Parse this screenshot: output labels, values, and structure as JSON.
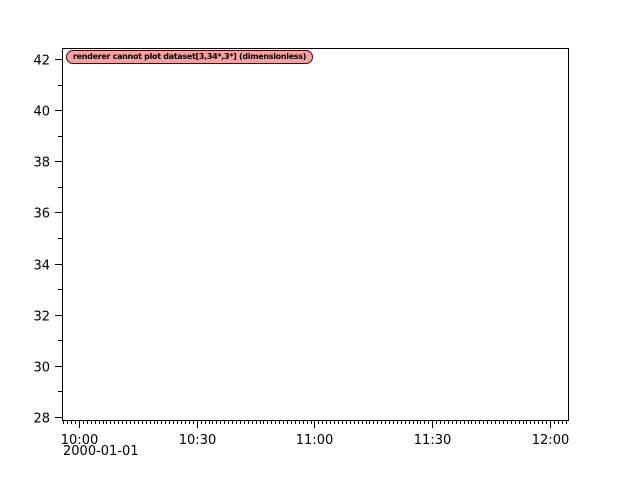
{
  "figure": {
    "background": "#ffffff"
  },
  "chart_data": {
    "type": "line",
    "title": "",
    "plot_bg": "#ffffff",
    "axis_color": "#000000",
    "grid": false,
    "legend": false,
    "series": [],
    "x_axis": {
      "type": "time",
      "date_label": "2000-01-01",
      "range_minutes": [
        595.67,
        724.59
      ],
      "major_ticks": [
        {
          "minute": 600,
          "label": "10:00"
        },
        {
          "minute": 630,
          "label": "10:30"
        },
        {
          "minute": 660,
          "label": "11:00"
        },
        {
          "minute": 690,
          "label": "11:30"
        },
        {
          "minute": 720,
          "label": "12:00"
        }
      ],
      "minor_tick_interval_minutes": 1
    },
    "y_axis": {
      "range": [
        27.88,
        42.43
      ],
      "major_ticks": [
        28,
        30,
        32,
        34,
        36,
        38,
        40,
        42
      ],
      "minor_tick_interval": 1
    },
    "annotations": [
      {
        "kind": "error-badge",
        "text": "renderer cannot plot dataset[3,34*,3*] (dimensionless)",
        "fill": "#f9a1a1",
        "border": "#530000",
        "text_color": "#000000"
      }
    ]
  }
}
